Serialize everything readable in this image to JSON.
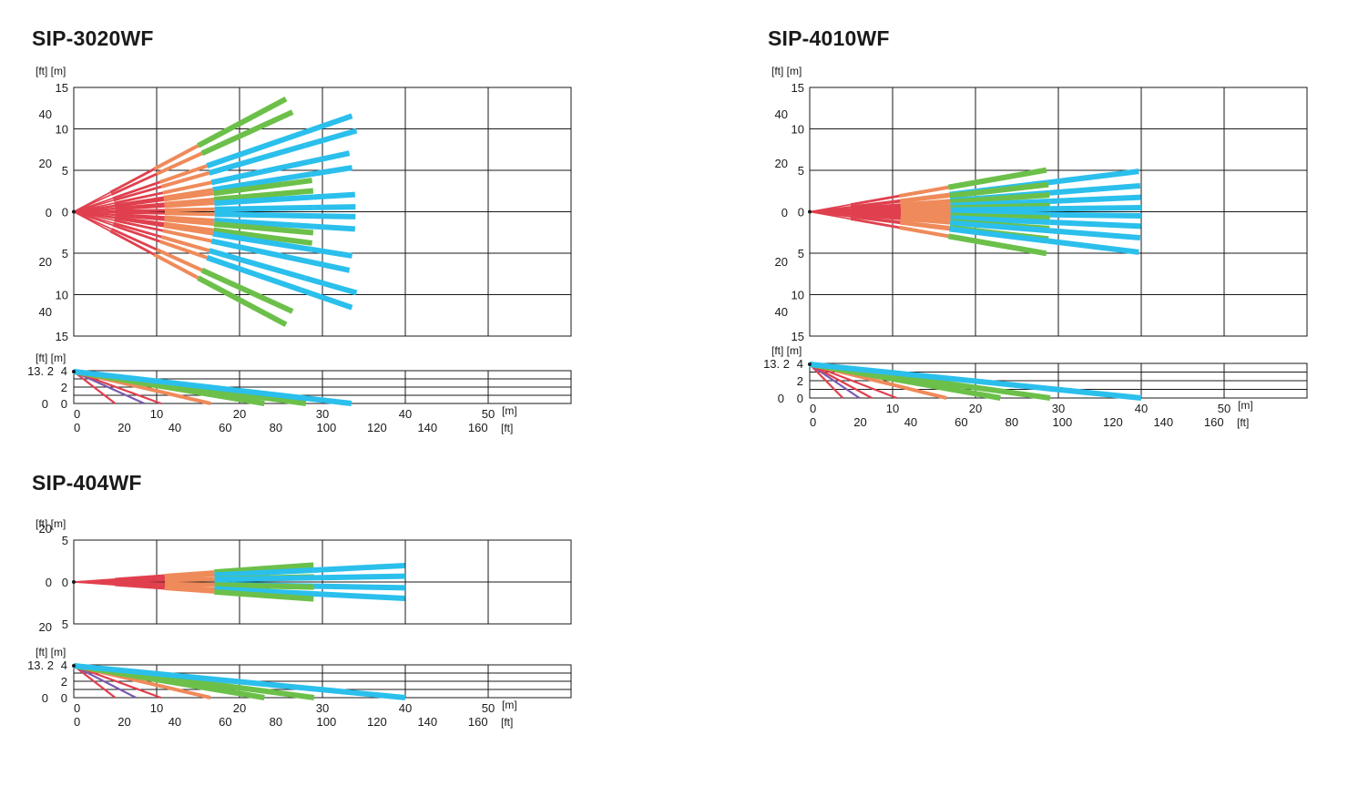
{
  "colors": {
    "red": "#e0404e",
    "purple": "#7a5bb0",
    "orange": "#ef8a5a",
    "green": "#6cc04a",
    "blue": "#2bbfec",
    "ink": "#1a1a1a",
    "background": "#ffffff"
  },
  "labels": {
    "ft": "[ft]",
    "m": "[m]",
    "ft_m": "[ft] [m]",
    "mount_ft": "13. 2",
    "zero": "0"
  },
  "diagrams": [
    {
      "id": "sip-3020wf",
      "title": "SIP-3020WF",
      "top_view": {
        "y_range_m": [
          -15,
          15
        ],
        "x_range_m": [
          0,
          60
        ],
        "y_ticks_m": [
          "15",
          "10",
          "5",
          "0",
          "5",
          "10",
          "15"
        ],
        "y_ticks_ft": [
          "40",
          "20",
          "0",
          "20",
          "40"
        ],
        "beams": [
          {
            "angle_deg": 28,
            "length_m": 29
          },
          {
            "angle_deg": 24.5,
            "length_m": 29
          },
          {
            "angle_deg": 19,
            "length_m": 35.5
          },
          {
            "angle_deg": 16,
            "length_m": 35.5
          },
          {
            "angle_deg": 12,
            "length_m": 34
          },
          {
            "angle_deg": 9,
            "length_m": 34
          },
          {
            "angle_deg": 7.5,
            "length_m": 29
          },
          {
            "angle_deg": 5,
            "length_m": 29
          },
          {
            "angle_deg": 3.5,
            "length_m": 34
          },
          {
            "angle_deg": 1,
            "length_m": 34
          },
          {
            "angle_deg": -1,
            "length_m": 34
          },
          {
            "angle_deg": -3.5,
            "length_m": 34
          },
          {
            "angle_deg": -5,
            "length_m": 29
          },
          {
            "angle_deg": -7.5,
            "length_m": 29
          },
          {
            "angle_deg": -9,
            "length_m": 34
          },
          {
            "angle_deg": -12,
            "length_m": 34
          },
          {
            "angle_deg": -16,
            "length_m": 35.5
          },
          {
            "angle_deg": -19,
            "length_m": 35.5
          },
          {
            "angle_deg": -24.5,
            "length_m": 29
          },
          {
            "angle_deg": -28,
            "length_m": 29
          }
        ]
      },
      "side_view": {
        "mount_height_m": 4,
        "y_ticks_m": [
          "4",
          "2",
          "0"
        ],
        "x_ticks_m": [
          "0",
          "10",
          "20",
          "30",
          "40",
          "50"
        ],
        "x_ticks_ft": [
          "0",
          "20",
          "40",
          "60",
          "80",
          "100",
          "120",
          "140",
          "160"
        ],
        "beams": [
          {
            "end_m": 5,
            "color": "red"
          },
          {
            "end_m": 8.5,
            "color": "purple"
          },
          {
            "end_m": 10.5,
            "color": "red"
          },
          {
            "end_m": 16.5,
            "color": "orange"
          },
          {
            "end_m": 23,
            "color": "green"
          },
          {
            "end_m": 28,
            "color": "green"
          },
          {
            "end_m": 33.5,
            "color": "blue"
          }
        ]
      }
    },
    {
      "id": "sip-4010wf",
      "title": "SIP-4010WF",
      "top_view": {
        "y_range_m": [
          -15,
          15
        ],
        "x_range_m": [
          0,
          60
        ],
        "y_ticks_m": [
          "15",
          "10",
          "5",
          "0",
          "5",
          "10",
          "15"
        ],
        "y_ticks_ft": [
          "40",
          "20",
          "0",
          "20",
          "40"
        ],
        "beams": [
          {
            "angle_deg": 10,
            "length_m": 29
          },
          {
            "angle_deg": 7,
            "length_m": 40
          },
          {
            "angle_deg": 6.5,
            "length_m": 29
          },
          {
            "angle_deg": 4.5,
            "length_m": 40
          },
          {
            "angle_deg": 4,
            "length_m": 29
          },
          {
            "angle_deg": 2.5,
            "length_m": 40
          },
          {
            "angle_deg": 1.5,
            "length_m": 29
          },
          {
            "angle_deg": 0.7,
            "length_m": 40
          },
          {
            "angle_deg": -0.7,
            "length_m": 40
          },
          {
            "angle_deg": -1.5,
            "length_m": 29
          },
          {
            "angle_deg": -2.5,
            "length_m": 40
          },
          {
            "angle_deg": -4,
            "length_m": 29
          },
          {
            "angle_deg": -4.5,
            "length_m": 40
          },
          {
            "angle_deg": -6.5,
            "length_m": 29
          },
          {
            "angle_deg": -7,
            "length_m": 40
          },
          {
            "angle_deg": -10,
            "length_m": 29
          }
        ]
      },
      "side_view": {
        "mount_height_m": 4,
        "y_ticks_m": [
          "4",
          "2",
          "0"
        ],
        "x_ticks_m": [
          "0",
          "10",
          "20",
          "30",
          "40",
          "50"
        ],
        "x_ticks_ft": [
          "0",
          "20",
          "40",
          "60",
          "80",
          "100",
          "120",
          "140",
          "160"
        ],
        "beams": [
          {
            "end_m": 4,
            "color": "red"
          },
          {
            "end_m": 6,
            "color": "purple"
          },
          {
            "end_m": 7.5,
            "color": "red"
          },
          {
            "end_m": 10.5,
            "color": "red"
          },
          {
            "end_m": 16.5,
            "color": "orange"
          },
          {
            "end_m": 23,
            "color": "green"
          },
          {
            "end_m": 29,
            "color": "green"
          },
          {
            "end_m": 40,
            "color": "blue"
          }
        ]
      }
    },
    {
      "id": "sip-404wf",
      "title": "SIP-404WF",
      "top_view": {
        "y_range_m": [
          -5,
          5
        ],
        "x_range_m": [
          0,
          60
        ],
        "y_ticks_m": [
          "5",
          "0",
          "5"
        ],
        "y_ticks_ft": [
          "20",
          "0",
          "20"
        ],
        "beams": [
          {
            "angle_deg": 4,
            "length_m": 29
          },
          {
            "angle_deg": 2.8,
            "length_m": 40
          },
          {
            "angle_deg": 1.2,
            "length_m": 29
          },
          {
            "angle_deg": 1,
            "length_m": 40
          },
          {
            "angle_deg": -1,
            "length_m": 40
          },
          {
            "angle_deg": -1.2,
            "length_m": 29
          },
          {
            "angle_deg": -2.8,
            "length_m": 40
          },
          {
            "angle_deg": -4,
            "length_m": 29
          }
        ]
      },
      "side_view": {
        "mount_height_m": 4,
        "y_ticks_m": [
          "4",
          "2",
          "0"
        ],
        "x_ticks_m": [
          "0",
          "10",
          "20",
          "30",
          "40",
          "50"
        ],
        "x_ticks_ft": [
          "0",
          "20",
          "40",
          "60",
          "80",
          "100",
          "120",
          "140",
          "160"
        ],
        "beams": [
          {
            "end_m": 5,
            "color": "red"
          },
          {
            "end_m": 7.5,
            "color": "purple"
          },
          {
            "end_m": 10.5,
            "color": "red"
          },
          {
            "end_m": 16.5,
            "color": "orange"
          },
          {
            "end_m": 23,
            "color": "green"
          },
          {
            "end_m": 29,
            "color": "green"
          },
          {
            "end_m": 40,
            "color": "blue"
          }
        ]
      }
    }
  ]
}
